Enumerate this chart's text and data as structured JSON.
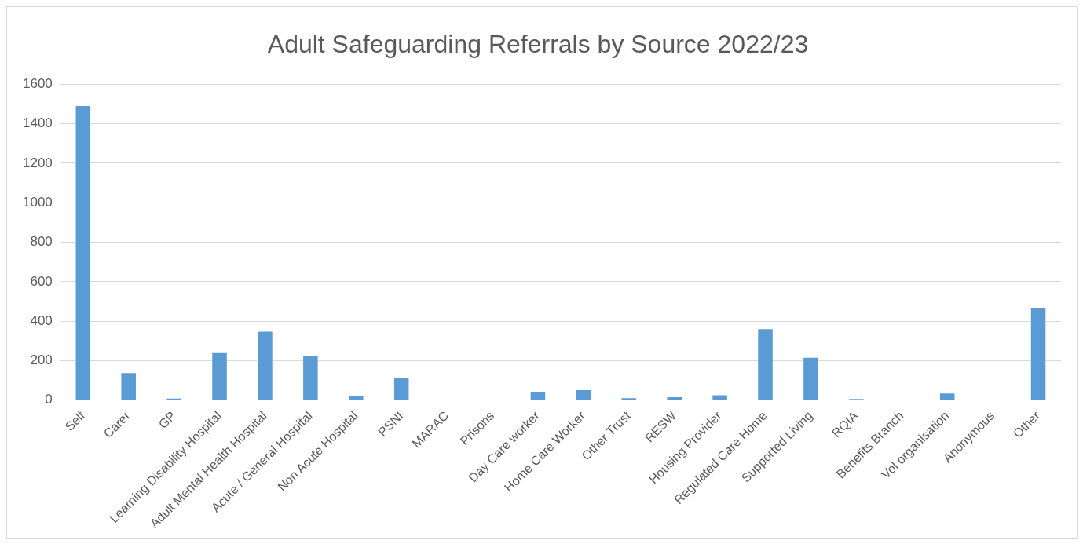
{
  "chart_data": {
    "type": "bar",
    "title": "Adult Safeguarding Referrals by Source 2022/23",
    "categories": [
      "Self",
      "Carer",
      "GP",
      "Learning Disability Hospital",
      "Adult Mental Health Hospital",
      "Acute / General Hospital",
      "Non Acute Hospital",
      "PSNI",
      "MARAC",
      "Prisons",
      "Day Care worker",
      "Home Care Worker",
      "Other Trust",
      "RESW",
      "Housing Provider",
      "Regulated Care Home",
      "Supported Living",
      "RQIA",
      "Benefits Branch",
      "Vol organisation",
      "Anonymous",
      "Other"
    ],
    "values": [
      1490,
      137,
      8,
      238,
      347,
      222,
      22,
      113,
      null,
      null,
      40,
      50,
      10,
      15,
      25,
      360,
      214,
      6,
      0,
      33,
      null,
      468
    ],
    "color": "#5b9bd5",
    "ylim": [
      0,
      1600
    ],
    "yticks": [
      0,
      200,
      400,
      600,
      800,
      1000,
      1200,
      1400,
      1600
    ],
    "grid": "y"
  }
}
